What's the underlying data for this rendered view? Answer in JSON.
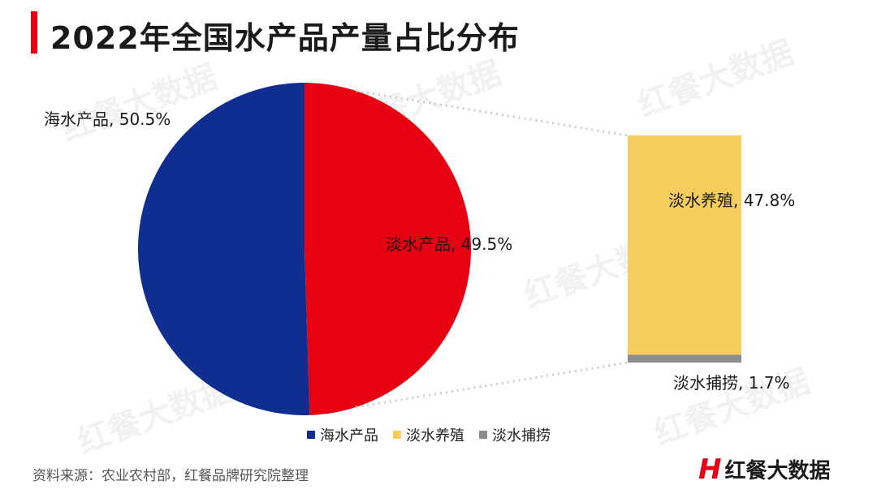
{
  "title": "2022年全国水产品产量占比分布",
  "source": "资料来源：农业农村部，红餐品牌研究院整理",
  "brand": {
    "logo": "H",
    "name": "红餐大数据"
  },
  "watermark_text": "红餐大数据",
  "colors": {
    "accent": "#e60012",
    "seawater": "#0f2e8f",
    "freshwater": "#e60012",
    "aquaculture": "#f5cd5c",
    "catch": "#8c8c8c"
  },
  "chart_data": {
    "type": "pie",
    "title": "2022年全国水产品产量占比分布",
    "slices": [
      {
        "name": "海水产品",
        "value": 50.5,
        "label": "海水产品, 50.5%"
      },
      {
        "name": "淡水产品",
        "value": 49.5,
        "label": "淡水产品, 49.5%"
      }
    ],
    "breakdown": {
      "of": "淡水产品",
      "type": "stacked-bar",
      "segments": [
        {
          "name": "淡水养殖",
          "value": 47.8,
          "label": "淡水养殖, 47.8%"
        },
        {
          "name": "淡水捕捞",
          "value": 1.7,
          "label": "淡水捕捞, 1.7%"
        }
      ]
    },
    "legend": [
      "海水产品",
      "淡水养殖",
      "淡水捕捞"
    ],
    "legend_position": "bottom"
  }
}
